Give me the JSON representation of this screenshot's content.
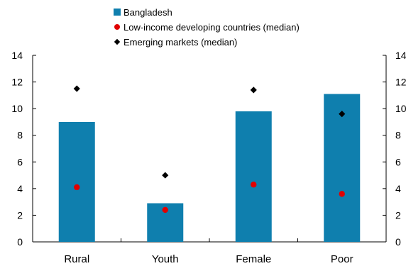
{
  "chart_data": {
    "type": "bar",
    "categories": [
      "Rural",
      "Youth",
      "Female",
      "Poor"
    ],
    "series": [
      {
        "name": "Bangladesh",
        "kind": "bar",
        "color": "#0f7fae",
        "values": [
          9.0,
          2.9,
          9.8,
          11.1
        ]
      },
      {
        "name": "Low-income developing countries (median)",
        "kind": "marker-circle",
        "color": "#e00000",
        "values": [
          4.1,
          2.4,
          4.3,
          3.6
        ]
      },
      {
        "name": "Emerging markets (median)",
        "kind": "marker-diamond",
        "color": "#000000",
        "values": [
          11.5,
          5.0,
          11.4,
          9.6
        ]
      }
    ],
    "ylim": [
      0,
      14
    ],
    "yticks": [
      "0",
      "2",
      "4",
      "6",
      "8",
      "10",
      "12",
      "14"
    ],
    "secondary_y_axis": true,
    "grid": false,
    "legend_position": "top-center"
  }
}
